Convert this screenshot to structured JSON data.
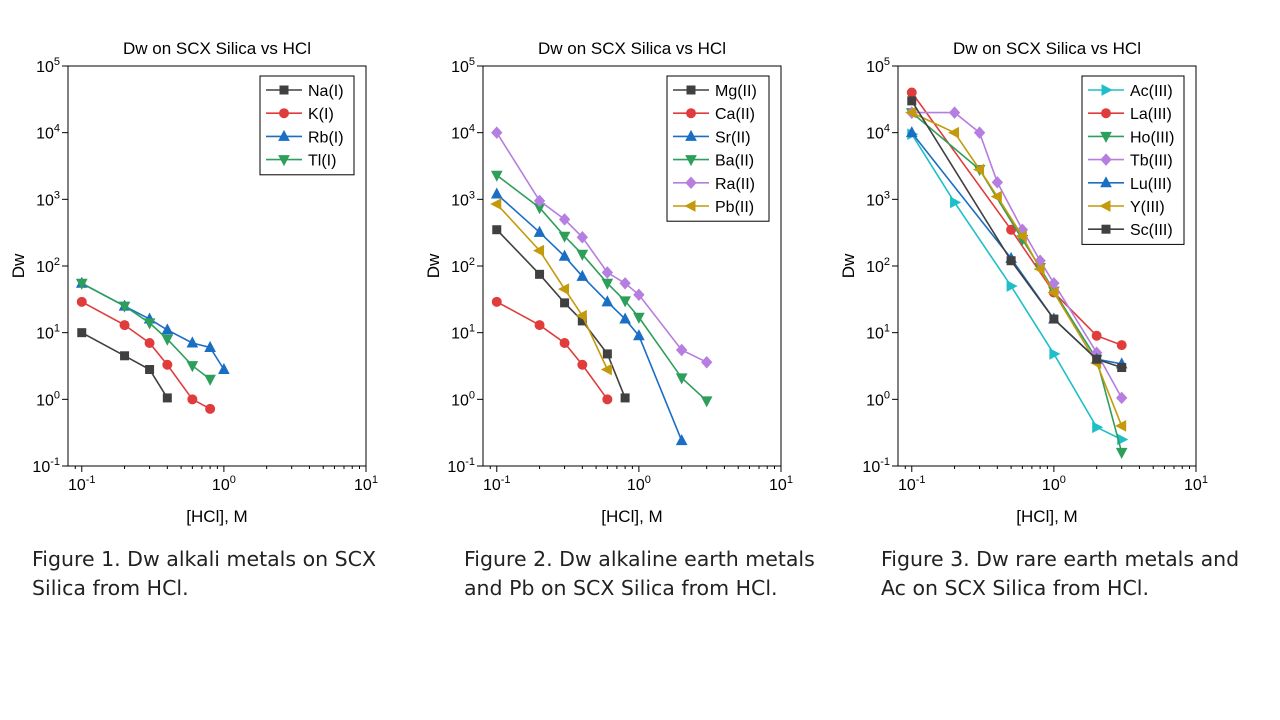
{
  "captions": [
    "Figure 1. Dw alkali metals on SCX\nSilica from HCl.",
    "Figure 2. Dw alkaline earth metals\nand Pb on SCX Silica from HCl.",
    "Figure 3. Dw rare earth metals and\nAc on SCX Silica from HCl."
  ],
  "chart_data": [
    {
      "type": "line",
      "title": "Dw on SCX Silica vs HCl",
      "xlabel": "[HCl], M",
      "ylabel": "Dw",
      "xscale": "log",
      "yscale": "log",
      "xlim": [
        0.08,
        10
      ],
      "ylim": [
        0.1,
        100000
      ],
      "x_ticks": [
        0.1,
        1,
        10
      ],
      "y_ticks": [
        0.1,
        1,
        10,
        100,
        1000,
        10000,
        100000
      ],
      "legend_position": "top-right",
      "series": [
        {
          "name": "Na(I)",
          "color": "#404040",
          "marker": "square",
          "x": [
            0.1,
            0.2,
            0.3,
            0.4
          ],
          "y": [
            10,
            4.5,
            2.8,
            1.05
          ]
        },
        {
          "name": "K(I)",
          "color": "#e03c3c",
          "marker": "circle",
          "x": [
            0.1,
            0.2,
            0.3,
            0.4,
            0.6,
            0.8
          ],
          "y": [
            29,
            13,
            7,
            3.3,
            1.0,
            0.72
          ]
        },
        {
          "name": "Rb(I)",
          "color": "#1a6fc4",
          "marker": "triangle-up",
          "x": [
            0.1,
            0.2,
            0.3,
            0.4,
            0.6,
            0.8,
            1.0
          ],
          "y": [
            55,
            25,
            16,
            11,
            7,
            6,
            2.8
          ]
        },
        {
          "name": "Tl(I)",
          "color": "#2e9e5b",
          "marker": "triangle-down",
          "x": [
            0.1,
            0.2,
            0.3,
            0.4,
            0.6,
            0.8
          ],
          "y": [
            55,
            25,
            14,
            8,
            3.2,
            2.0
          ]
        }
      ]
    },
    {
      "type": "line",
      "title": "Dw on SCX Silica vs HCl",
      "xlabel": "[HCl], M",
      "ylabel": "Dw",
      "xscale": "log",
      "yscale": "log",
      "xlim": [
        0.08,
        10
      ],
      "ylim": [
        0.1,
        100000
      ],
      "x_ticks": [
        0.1,
        1,
        10
      ],
      "y_ticks": [
        0.1,
        1,
        10,
        100,
        1000,
        10000,
        100000
      ],
      "legend_position": "top-right",
      "series": [
        {
          "name": "Mg(II)",
          "color": "#404040",
          "marker": "square",
          "x": [
            0.1,
            0.2,
            0.3,
            0.4,
            0.6,
            0.8
          ],
          "y": [
            350,
            75,
            28,
            15,
            4.8,
            1.05
          ]
        },
        {
          "name": "Ca(II)",
          "color": "#e03c3c",
          "marker": "circle",
          "x": [
            0.1,
            0.2,
            0.3,
            0.4,
            0.6
          ],
          "y": [
            29,
            13,
            7,
            3.3,
            1.0
          ]
        },
        {
          "name": "Sr(II)",
          "color": "#1a6fc4",
          "marker": "triangle-up",
          "x": [
            0.1,
            0.2,
            0.3,
            0.4,
            0.6,
            0.8,
            1.0,
            2.0
          ],
          "y": [
            1200,
            320,
            140,
            70,
            29,
            16,
            9,
            0.24
          ]
        },
        {
          "name": "Ba(II)",
          "color": "#2e9e5b",
          "marker": "triangle-down",
          "x": [
            0.1,
            0.2,
            0.3,
            0.4,
            0.6,
            0.8,
            1.0,
            2.0,
            3.0
          ],
          "y": [
            2300,
            750,
            280,
            150,
            55,
            30,
            17,
            2.1,
            0.95
          ]
        },
        {
          "name": "Ra(II)",
          "color": "#b57ee0",
          "marker": "diamond",
          "x": [
            0.1,
            0.2,
            0.3,
            0.4,
            0.6,
            0.8,
            1.0,
            2.0,
            3.0
          ],
          "y": [
            10000,
            950,
            500,
            270,
            80,
            55,
            37,
            5.5,
            3.6
          ]
        },
        {
          "name": "Pb(II)",
          "color": "#c49a0c",
          "marker": "triangle-left",
          "x": [
            0.1,
            0.2,
            0.3,
            0.4,
            0.6
          ],
          "y": [
            850,
            170,
            45,
            18,
            2.8
          ]
        }
      ]
    },
    {
      "type": "line",
      "title": "Dw on SCX Silica vs HCl",
      "xlabel": "[HCl], M",
      "ylabel": "Dw",
      "xscale": "log",
      "yscale": "log",
      "xlim": [
        0.08,
        10
      ],
      "ylim": [
        0.1,
        100000
      ],
      "x_ticks": [
        0.1,
        1,
        10
      ],
      "y_ticks": [
        0.1,
        1,
        10,
        100,
        1000,
        10000,
        100000
      ],
      "legend_position": "top-right",
      "series": [
        {
          "name": "Ac(III)",
          "color": "#1fbfc9",
          "marker": "triangle-right",
          "x": [
            0.1,
            0.2,
            0.5,
            1.0,
            2.0,
            3.0
          ],
          "y": [
            9500,
            900,
            50,
            4.8,
            0.38,
            0.25
          ]
        },
        {
          "name": "La(III)",
          "color": "#e03c3c",
          "marker": "circle",
          "x": [
            0.1,
            0.5,
            1.0,
            2.0,
            3.0
          ],
          "y": [
            40000,
            350,
            40,
            9,
            6.5
          ]
        },
        {
          "name": "Ho(III)",
          "color": "#2e9e5b",
          "marker": "triangle-down",
          "x": [
            0.1,
            0.3,
            0.6,
            0.8,
            1.0,
            2.0,
            3.0
          ],
          "y": [
            20000,
            2800,
            250,
            95,
            42,
            4.0,
            0.16
          ]
        },
        {
          "name": "Tb(III)",
          "color": "#b57ee0",
          "marker": "diamond",
          "x": [
            0.1,
            0.2,
            0.3,
            0.4,
            0.6,
            0.8,
            1.0,
            2.0,
            3.0
          ],
          "y": [
            20000,
            20000,
            10000,
            1800,
            350,
            120,
            55,
            5.0,
            1.05
          ]
        },
        {
          "name": "Lu(III)",
          "color": "#1a6fc4",
          "marker": "triangle-up",
          "x": [
            0.1,
            0.5,
            1.0,
            2.0,
            3.0
          ],
          "y": [
            10000,
            130,
            16,
            4.0,
            3.4
          ]
        },
        {
          "name": "Y(III)",
          "color": "#c49a0c",
          "marker": "triangle-left",
          "x": [
            0.1,
            0.2,
            0.3,
            0.4,
            0.6,
            0.8,
            1.0,
            2.0,
            3.0
          ],
          "y": [
            20000,
            10000,
            2800,
            1100,
            280,
            90,
            40,
            3.5,
            0.4
          ]
        },
        {
          "name": "Sc(III)",
          "color": "#404040",
          "marker": "square",
          "x": [
            0.1,
            0.5,
            1.0,
            2.0,
            3.0
          ],
          "y": [
            30000,
            120,
            16,
            4.0,
            3.0
          ]
        }
      ]
    }
  ]
}
